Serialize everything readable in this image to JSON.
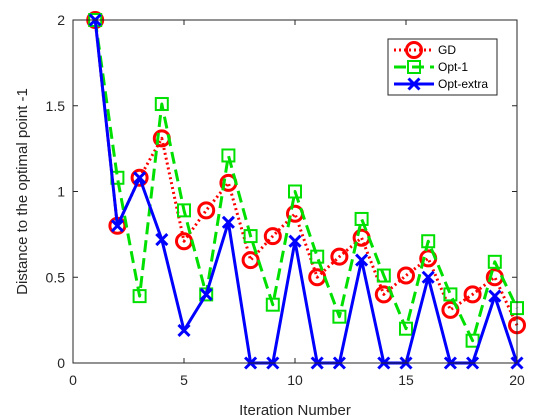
{
  "chart_data": {
    "type": "line",
    "title": "",
    "xlabel": "Iteration Number",
    "ylabel": "Distance to the optimal point -1",
    "xlim": [
      0,
      20
    ],
    "ylim": [
      0,
      2
    ],
    "xticks": [
      "0",
      "5",
      "10",
      "15",
      "20"
    ],
    "yticks": [
      "0",
      "0.5",
      "1",
      "1.5",
      "2"
    ],
    "xtick_values": [
      0,
      5,
      10,
      15,
      20
    ],
    "ytick_values": [
      0,
      0.5,
      1,
      1.5,
      2
    ],
    "grid": false,
    "legend_position": "top-right",
    "x": [
      1,
      2,
      3,
      4,
      5,
      6,
      7,
      8,
      9,
      10,
      11,
      12,
      13,
      14,
      15,
      16,
      17,
      18,
      19,
      20
    ],
    "series": [
      {
        "name": "GD",
        "color": "#ff0000",
        "line_style": "dotted",
        "marker": "circle",
        "values": [
          2.0,
          0.8,
          1.08,
          1.31,
          0.71,
          0.89,
          1.05,
          0.6,
          0.74,
          0.87,
          0.5,
          0.62,
          0.73,
          0.4,
          0.51,
          0.61,
          0.31,
          0.4,
          0.5,
          0.22
        ]
      },
      {
        "name": "Opt-1",
        "color": "#00e000",
        "line_style": "dashed",
        "marker": "square",
        "values": [
          2.0,
          1.08,
          0.39,
          1.51,
          0.89,
          0.4,
          1.21,
          0.74,
          0.34,
          1.0,
          0.62,
          0.27,
          0.84,
          0.51,
          0.2,
          0.71,
          0.4,
          0.13,
          0.59,
          0.32
        ]
      },
      {
        "name": "Opt-extra",
        "color": "#0000ff",
        "line_style": "solid",
        "marker": "x",
        "values": [
          2.0,
          0.8,
          1.08,
          0.72,
          0.19,
          0.4,
          0.82,
          0.0,
          0.0,
          0.71,
          0.0,
          0.0,
          0.6,
          0.0,
          0.0,
          0.5,
          0.0,
          0.0,
          0.39,
          0.0
        ]
      }
    ]
  }
}
